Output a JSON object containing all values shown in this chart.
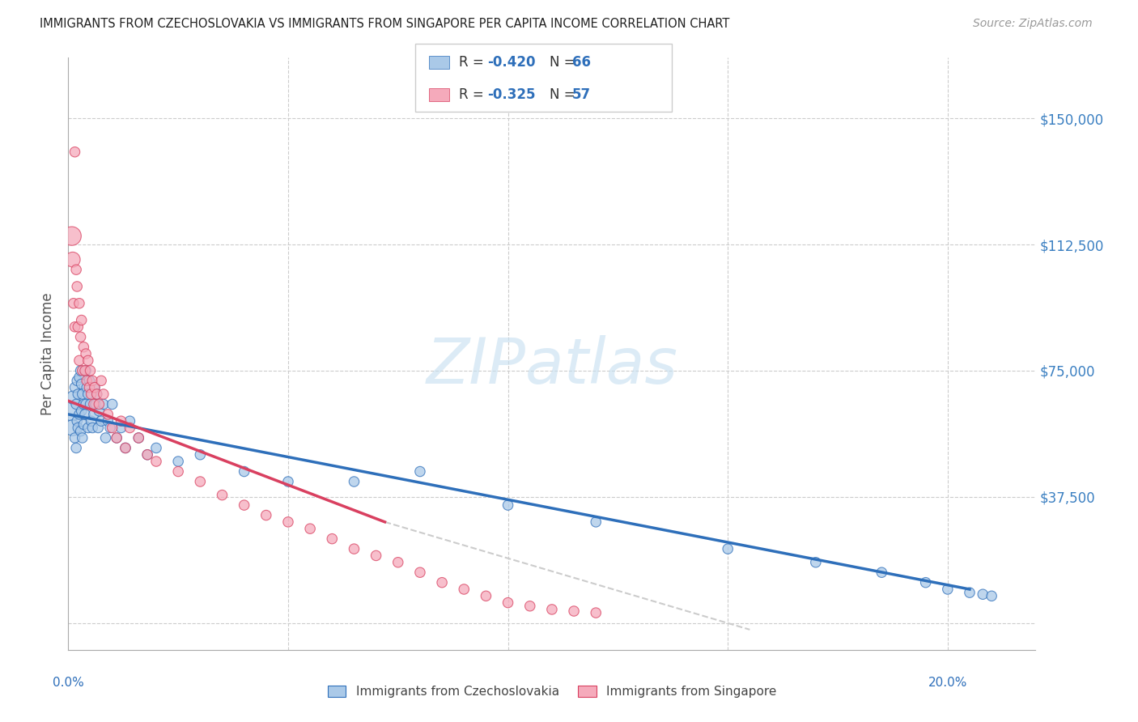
{
  "title": "IMMIGRANTS FROM CZECHOSLOVAKIA VS IMMIGRANTS FROM SINGAPORE PER CAPITA INCOME CORRELATION CHART",
  "source": "Source: ZipAtlas.com",
  "ylabel": "Per Capita Income",
  "yticks": [
    0,
    37500,
    75000,
    112500,
    150000
  ],
  "ytick_labels": [
    "",
    "$37,500",
    "$75,000",
    "$112,500",
    "$150,000"
  ],
  "xlim": [
    0.0,
    0.22
  ],
  "ylim": [
    -8000,
    168000
  ],
  "watermark": "ZIPatlas",
  "legend_r1": "-0.420",
  "legend_n1": "66",
  "legend_r2": "-0.325",
  "legend_n2": "57",
  "color_czech": "#aac9e8",
  "color_sing": "#f5aabb",
  "color_czech_line": "#2e6fba",
  "color_sing_line": "#d94060",
  "color_trend_ext": "#cccccc",
  "label_czech": "Immigrants from Czechoslovakia",
  "label_sing": "Immigrants from Singapore",
  "czech_x": [
    0.0008,
    0.001,
    0.0012,
    0.0015,
    0.0015,
    0.0018,
    0.0018,
    0.002,
    0.002,
    0.0022,
    0.0022,
    0.0025,
    0.0025,
    0.0028,
    0.0028,
    0.003,
    0.003,
    0.0032,
    0.0032,
    0.0035,
    0.0035,
    0.0038,
    0.004,
    0.004,
    0.0042,
    0.0045,
    0.0045,
    0.0048,
    0.005,
    0.0052,
    0.0055,
    0.0058,
    0.006,
    0.0062,
    0.0065,
    0.0068,
    0.007,
    0.0075,
    0.008,
    0.0085,
    0.009,
    0.0095,
    0.01,
    0.011,
    0.012,
    0.013,
    0.014,
    0.016,
    0.018,
    0.02,
    0.025,
    0.03,
    0.04,
    0.05,
    0.065,
    0.08,
    0.1,
    0.12,
    0.15,
    0.17,
    0.185,
    0.195,
    0.2,
    0.205,
    0.208,
    0.21
  ],
  "czech_y": [
    63000,
    58000,
    67000,
    70000,
    55000,
    65000,
    52000,
    72000,
    60000,
    68000,
    58000,
    73000,
    62000,
    75000,
    57000,
    71000,
    63000,
    68000,
    55000,
    65000,
    59000,
    62000,
    75000,
    65000,
    70000,
    68000,
    58000,
    72000,
    65000,
    60000,
    58000,
    62000,
    70000,
    65000,
    68000,
    58000,
    63000,
    60000,
    65000,
    55000,
    60000,
    58000,
    65000,
    55000,
    58000,
    52000,
    60000,
    55000,
    50000,
    52000,
    48000,
    50000,
    45000,
    42000,
    42000,
    45000,
    35000,
    30000,
    22000,
    18000,
    15000,
    12000,
    10000,
    9000,
    8500,
    8000
  ],
  "sing_x": [
    0.0008,
    0.001,
    0.0012,
    0.0015,
    0.0015,
    0.0018,
    0.002,
    0.0022,
    0.0025,
    0.0025,
    0.0028,
    0.003,
    0.0032,
    0.0035,
    0.0038,
    0.004,
    0.0042,
    0.0045,
    0.0048,
    0.005,
    0.0052,
    0.0055,
    0.0058,
    0.006,
    0.0065,
    0.007,
    0.0075,
    0.008,
    0.009,
    0.01,
    0.011,
    0.012,
    0.013,
    0.014,
    0.016,
    0.018,
    0.02,
    0.025,
    0.03,
    0.035,
    0.04,
    0.045,
    0.05,
    0.055,
    0.06,
    0.065,
    0.07,
    0.075,
    0.08,
    0.085,
    0.09,
    0.095,
    0.1,
    0.105,
    0.11,
    0.115,
    0.12
  ],
  "sing_y": [
    115000,
    108000,
    95000,
    140000,
    88000,
    105000,
    100000,
    88000,
    95000,
    78000,
    85000,
    90000,
    75000,
    82000,
    75000,
    80000,
    72000,
    78000,
    70000,
    75000,
    68000,
    72000,
    65000,
    70000,
    68000,
    65000,
    72000,
    68000,
    62000,
    58000,
    55000,
    60000,
    52000,
    58000,
    55000,
    50000,
    48000,
    45000,
    42000,
    38000,
    35000,
    32000,
    30000,
    28000,
    25000,
    22000,
    20000,
    18000,
    15000,
    12000,
    10000,
    8000,
    6000,
    5000,
    4000,
    3500,
    3000
  ],
  "blue_line_x0": 0.0,
  "blue_line_y0": 62000,
  "blue_line_x1": 0.205,
  "blue_line_y1": 10000,
  "pink_line_x0": 0.0,
  "pink_line_y0": 66000,
  "pink_line_x1": 0.072,
  "pink_line_y1": 30000,
  "gray_line_x0": 0.072,
  "gray_line_y0": 30000,
  "gray_line_x1": 0.155,
  "gray_line_y1": -2000
}
